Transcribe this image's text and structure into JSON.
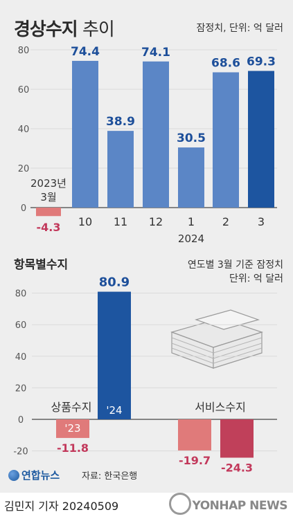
{
  "header": {
    "title_bold": "경상수지",
    "title_light": " 추이",
    "note": "잠정치, 단위: 억 달러"
  },
  "section2": {
    "title": "항목별수지",
    "note_line1": "연도별 3월 기준 잠정치",
    "note_line2": "단위: 억 달러"
  },
  "footer": {
    "logo": "연합뉴스",
    "source": "자료: 한국은행",
    "byline": "김민지 기자  20240509",
    "watermark": "YONHAP NEWS"
  },
  "colors": {
    "blue": "#5b86c6",
    "dark_blue": "#1d55a0",
    "red_light": "#e07a7a",
    "red_dark": "#c0405a",
    "neg_label": "#c2385b",
    "pos_label": "#1d4f9a"
  },
  "chart_data": [
    {
      "type": "bar",
      "title": "경상수지 추이",
      "categories": [
        "10",
        "11",
        "12",
        "1",
        "2",
        "3"
      ],
      "extra_category": {
        "label_line1": "2023년",
        "label_line2": "3월",
        "value": -4.3,
        "value_text": "-4.3"
      },
      "values": [
        74.4,
        38.9,
        74.1,
        30.5,
        68.6,
        69.3
      ],
      "value_labels": [
        "74.4",
        "38.9",
        "74.1",
        "30.5",
        "68.6",
        "69.3"
      ],
      "year_label": "2024",
      "yticks": [
        "80",
        "60",
        "40",
        "20",
        "0"
      ],
      "ylim": [
        -8,
        85
      ]
    },
    {
      "type": "bar",
      "title": "항목별수지",
      "groups": [
        {
          "name": "상품수지",
          "bars": [
            {
              "label": "'23",
              "value": -11.8,
              "value_text": "-11.8"
            },
            {
              "label": "'24",
              "value": 80.9,
              "value_text": "80.9"
            }
          ]
        },
        {
          "name": "서비스수지",
          "bars": [
            {
              "label": "",
              "value": -19.7,
              "value_text": "-19.7"
            },
            {
              "label": "",
              "value": -24.3,
              "value_text": "-24.3"
            }
          ]
        }
      ],
      "yticks": [
        "80",
        "60",
        "40",
        "20",
        "0",
        "-20"
      ],
      "ylim": [
        -30,
        85
      ]
    }
  ]
}
